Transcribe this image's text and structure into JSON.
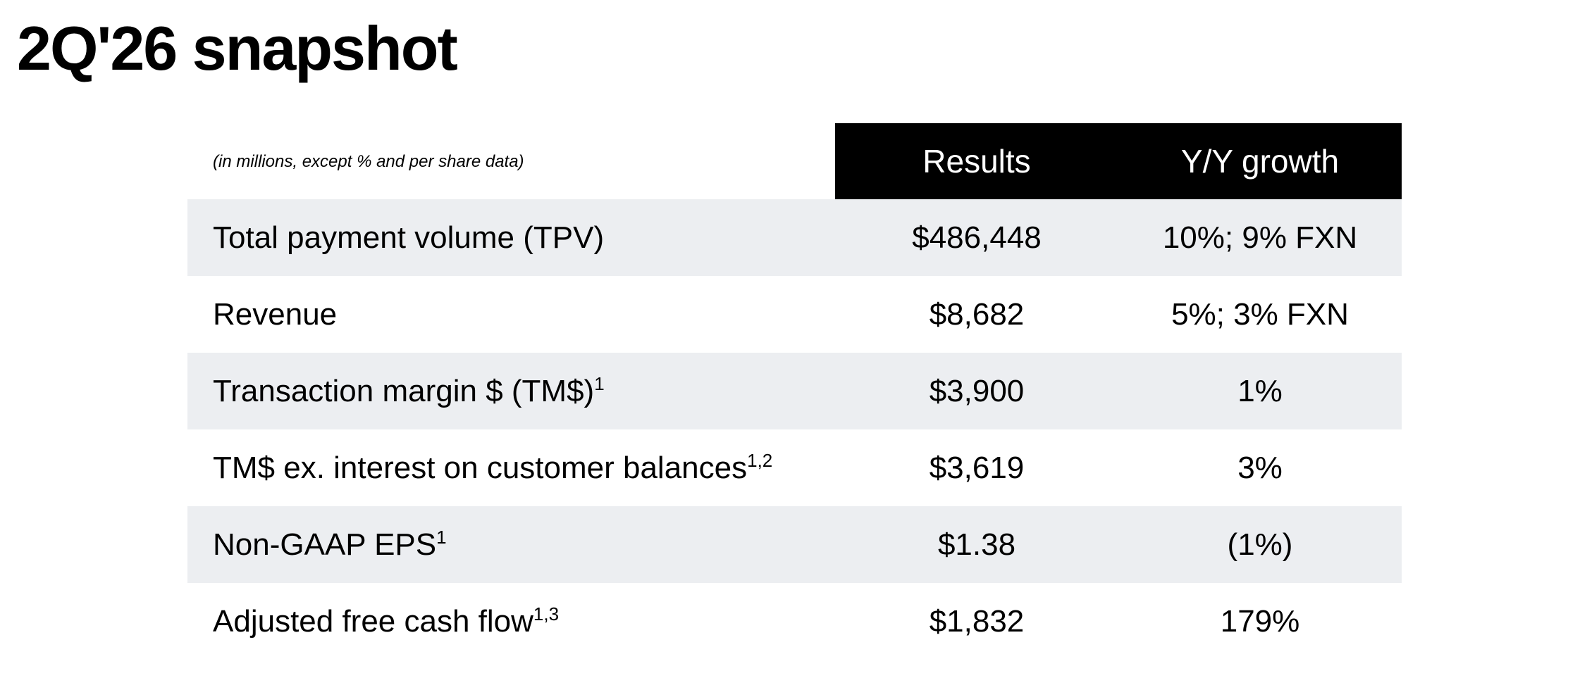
{
  "header": {
    "title": "2Q'26 snapshot"
  },
  "table": {
    "note": "(in millions, except % and per share data)",
    "columns": [
      "Results",
      "Y/Y growth"
    ],
    "rows": [
      {
        "label": "Total payment volume (TPV)",
        "result": "$486,448",
        "growth": "10%; 9% FXN"
      },
      {
        "label": "Revenue",
        "result": "$8,682",
        "growth": "5%; 3% FXN"
      },
      {
        "label": "Transaction margin $ (TM$)",
        "sup": "1",
        "result": "$3,900",
        "growth": "1%"
      },
      {
        "label": "TM$ ex. interest on customer balances",
        "sup": "1,2",
        "result": "$3,619",
        "growth": "3%"
      },
      {
        "label": "Non-GAAP EPS",
        "sup": "1",
        "result": "$1.38",
        "growth": "(1%)"
      },
      {
        "label": "Adjusted free cash flow",
        "sup": "1,3",
        "result": "$1,832",
        "growth": "179%"
      }
    ]
  }
}
